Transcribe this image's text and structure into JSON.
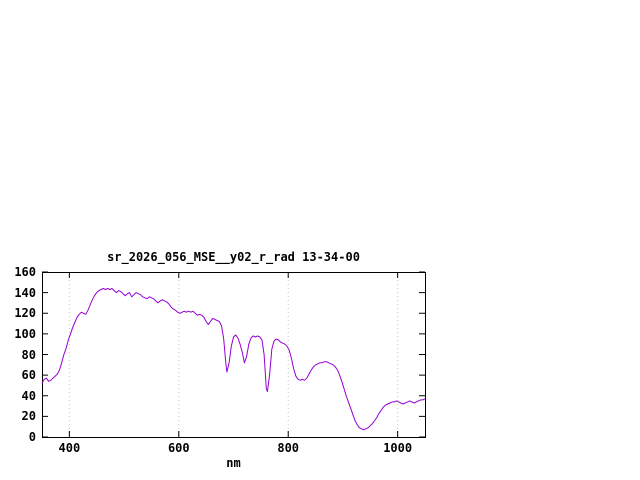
{
  "page": {
    "background": "#ffffff"
  },
  "colors": {
    "line": "#9400d3",
    "axis": "#000000",
    "grid": "#c8c8c8",
    "text": "#000000"
  },
  "chart_data": {
    "type": "line",
    "title": "sr_2026_056_MSE__y02_r_rad 13-34-00",
    "xlabel": "nm",
    "ylabel": "",
    "xlim": [
      350,
      1050
    ],
    "ylim": [
      0,
      160
    ],
    "xticks": [
      400,
      600,
      800,
      1000
    ],
    "yticks": [
      0,
      20,
      40,
      60,
      80,
      100,
      120,
      140,
      160
    ],
    "grid": "vertical dotted lines at major x ticks",
    "legend": "none",
    "series": [
      {
        "name": "sr_2026_056_MSE__y02_r_rad",
        "color": "#9400d3",
        "points": [
          [
            350,
            52
          ],
          [
            354,
            56
          ],
          [
            358,
            57
          ],
          [
            362,
            54
          ],
          [
            366,
            55
          ],
          [
            370,
            57
          ],
          [
            374,
            59
          ],
          [
            378,
            61
          ],
          [
            382,
            65
          ],
          [
            386,
            72
          ],
          [
            390,
            80
          ],
          [
            394,
            86
          ],
          [
            398,
            94
          ],
          [
            402,
            100
          ],
          [
            406,
            106
          ],
          [
            410,
            111
          ],
          [
            414,
            116
          ],
          [
            418,
            119
          ],
          [
            422,
            121
          ],
          [
            426,
            120
          ],
          [
            430,
            119
          ],
          [
            434,
            123
          ],
          [
            438,
            128
          ],
          [
            442,
            133
          ],
          [
            446,
            137
          ],
          [
            450,
            140
          ],
          [
            454,
            142
          ],
          [
            458,
            143
          ],
          [
            462,
            144
          ],
          [
            466,
            143
          ],
          [
            470,
            144
          ],
          [
            474,
            143
          ],
          [
            478,
            144
          ],
          [
            482,
            142
          ],
          [
            486,
            140
          ],
          [
            490,
            142
          ],
          [
            494,
            141
          ],
          [
            498,
            139
          ],
          [
            502,
            137
          ],
          [
            506,
            139
          ],
          [
            510,
            140
          ],
          [
            514,
            136
          ],
          [
            518,
            138
          ],
          [
            522,
            140
          ],
          [
            526,
            139
          ],
          [
            530,
            138
          ],
          [
            534,
            136
          ],
          [
            538,
            135
          ],
          [
            542,
            134
          ],
          [
            546,
            136
          ],
          [
            550,
            135
          ],
          [
            554,
            134
          ],
          [
            558,
            132
          ],
          [
            562,
            130
          ],
          [
            566,
            132
          ],
          [
            570,
            133
          ],
          [
            574,
            132
          ],
          [
            578,
            131
          ],
          [
            582,
            129
          ],
          [
            586,
            126
          ],
          [
            590,
            124
          ],
          [
            594,
            123
          ],
          [
            598,
            121
          ],
          [
            602,
            120
          ],
          [
            606,
            121
          ],
          [
            610,
            122
          ],
          [
            614,
            121
          ],
          [
            618,
            122
          ],
          [
            622,
            121
          ],
          [
            626,
            122
          ],
          [
            630,
            120
          ],
          [
            634,
            118
          ],
          [
            638,
            119
          ],
          [
            642,
            118
          ],
          [
            646,
            116
          ],
          [
            650,
            112
          ],
          [
            654,
            109
          ],
          [
            658,
            112
          ],
          [
            662,
            115
          ],
          [
            666,
            114
          ],
          [
            670,
            113
          ],
          [
            674,
            112
          ],
          [
            678,
            108
          ],
          [
            682,
            95
          ],
          [
            686,
            72
          ],
          [
            688,
            63
          ],
          [
            692,
            72
          ],
          [
            696,
            88
          ],
          [
            700,
            97
          ],
          [
            704,
            99
          ],
          [
            708,
            96
          ],
          [
            712,
            90
          ],
          [
            716,
            82
          ],
          [
            720,
            72
          ],
          [
            724,
            78
          ],
          [
            728,
            90
          ],
          [
            732,
            96
          ],
          [
            736,
            98
          ],
          [
            740,
            97
          ],
          [
            744,
            98
          ],
          [
            748,
            97
          ],
          [
            752,
            94
          ],
          [
            756,
            80
          ],
          [
            760,
            47
          ],
          [
            762,
            44
          ],
          [
            766,
            60
          ],
          [
            770,
            85
          ],
          [
            774,
            93
          ],
          [
            778,
            95
          ],
          [
            782,
            94
          ],
          [
            786,
            92
          ],
          [
            790,
            91
          ],
          [
            794,
            90
          ],
          [
            798,
            88
          ],
          [
            802,
            84
          ],
          [
            806,
            76
          ],
          [
            810,
            66
          ],
          [
            814,
            59
          ],
          [
            818,
            56
          ],
          [
            822,
            55
          ],
          [
            826,
            56
          ],
          [
            830,
            55
          ],
          [
            834,
            57
          ],
          [
            838,
            61
          ],
          [
            842,
            65
          ],
          [
            846,
            68
          ],
          [
            850,
            70
          ],
          [
            854,
            71
          ],
          [
            858,
            72
          ],
          [
            862,
            72
          ],
          [
            866,
            73
          ],
          [
            870,
            73
          ],
          [
            874,
            72
          ],
          [
            878,
            71
          ],
          [
            882,
            70
          ],
          [
            886,
            68
          ],
          [
            890,
            65
          ],
          [
            894,
            60
          ],
          [
            898,
            54
          ],
          [
            902,
            47
          ],
          [
            906,
            40
          ],
          [
            910,
            34
          ],
          [
            914,
            28
          ],
          [
            918,
            22
          ],
          [
            922,
            16
          ],
          [
            926,
            12
          ],
          [
            930,
            9
          ],
          [
            934,
            8
          ],
          [
            938,
            7
          ],
          [
            942,
            8
          ],
          [
            946,
            9
          ],
          [
            950,
            11
          ],
          [
            954,
            13
          ],
          [
            958,
            16
          ],
          [
            962,
            19
          ],
          [
            966,
            23
          ],
          [
            970,
            26
          ],
          [
            974,
            29
          ],
          [
            978,
            31
          ],
          [
            982,
            32
          ],
          [
            986,
            33
          ],
          [
            990,
            34
          ],
          [
            994,
            34
          ],
          [
            998,
            35
          ],
          [
            1002,
            34
          ],
          [
            1006,
            33
          ],
          [
            1010,
            32
          ],
          [
            1014,
            33
          ],
          [
            1018,
            34
          ],
          [
            1022,
            35
          ],
          [
            1026,
            34
          ],
          [
            1030,
            33
          ],
          [
            1034,
            34
          ],
          [
            1038,
            35
          ],
          [
            1042,
            36
          ],
          [
            1046,
            36
          ],
          [
            1050,
            37
          ]
        ]
      }
    ]
  }
}
